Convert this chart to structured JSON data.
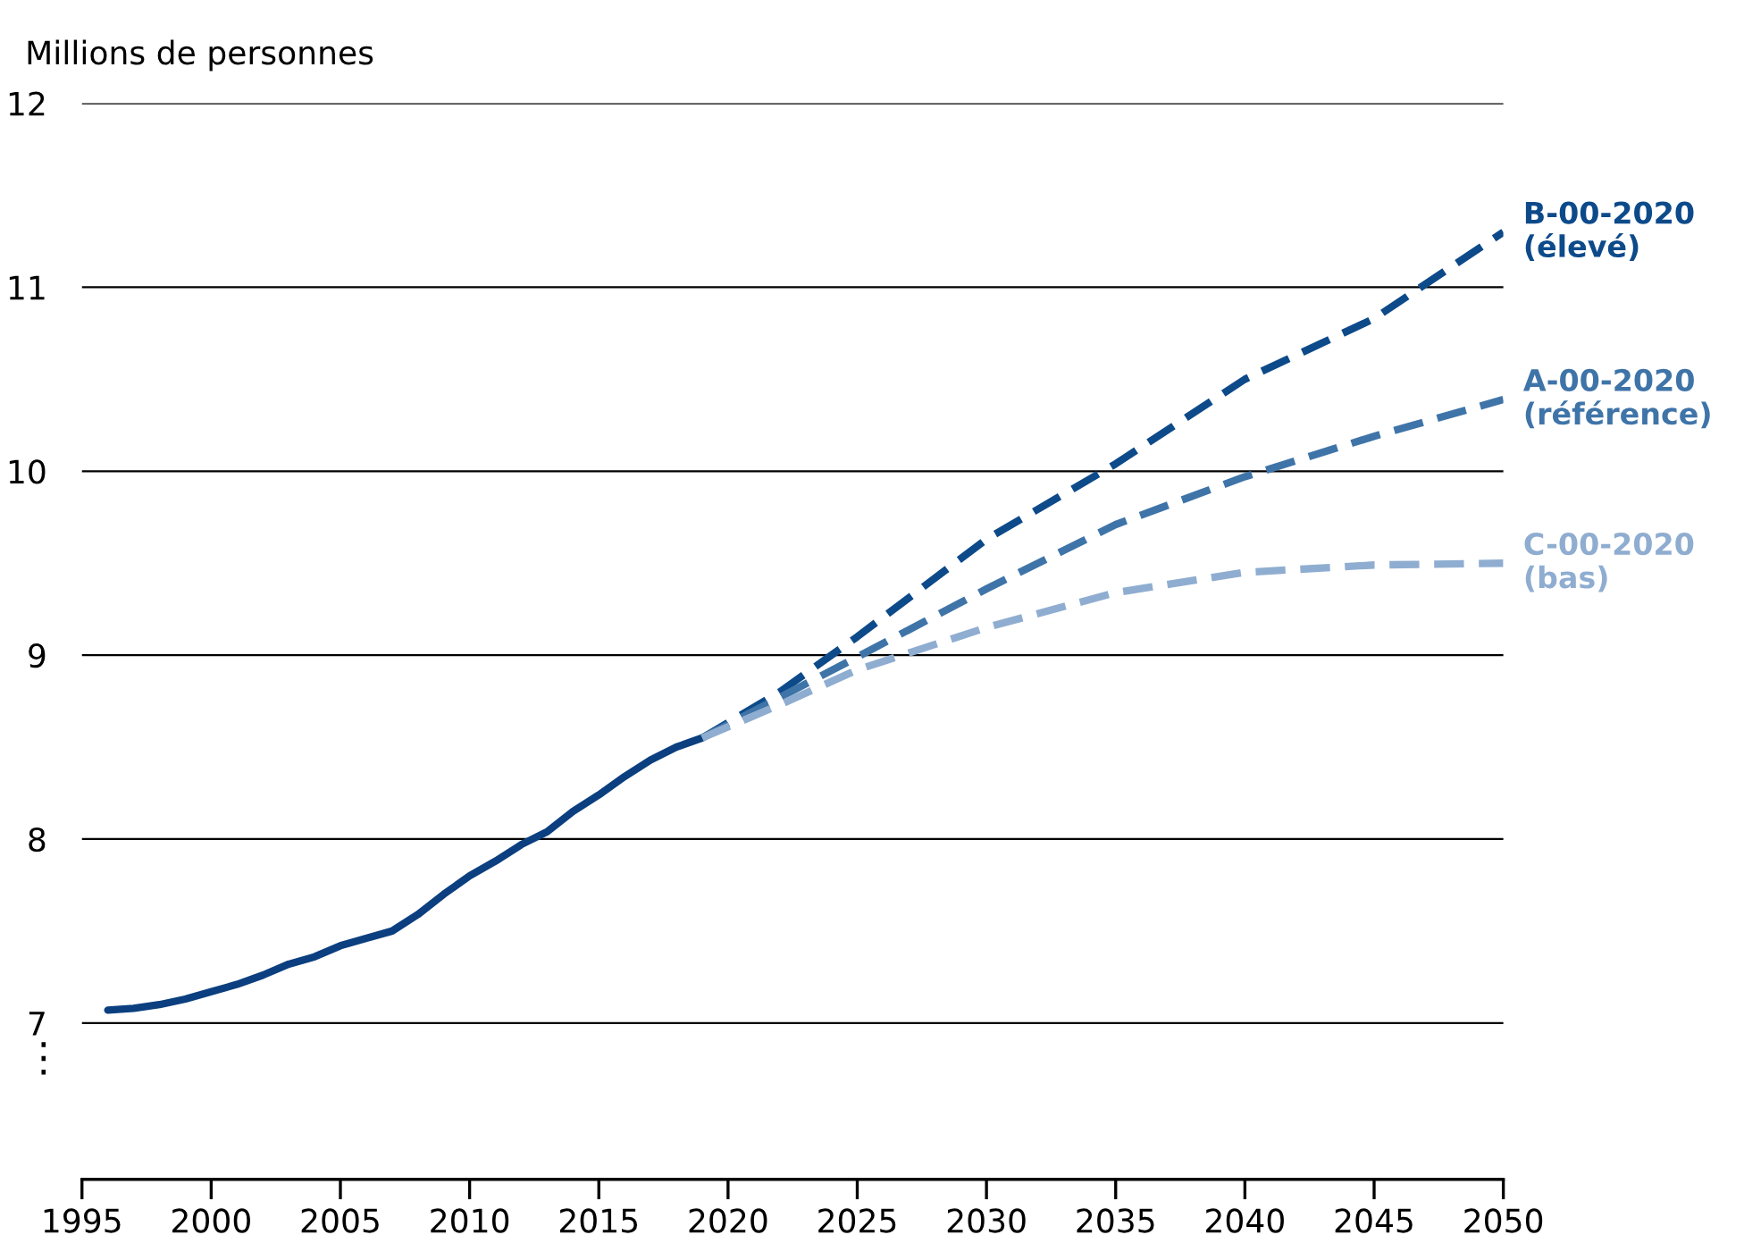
{
  "chart_data": {
    "type": "line",
    "ylabel": "Millions de personnes",
    "xlim": [
      1995,
      2050
    ],
    "xticks": [
      1995,
      2000,
      2005,
      2010,
      2015,
      2020,
      2025,
      2030,
      2035,
      2040,
      2045,
      2050
    ],
    "ylim": [
      6.15,
      12
    ],
    "yticks": [
      7,
      8,
      9,
      10,
      11,
      12
    ],
    "grid": "y",
    "legend": false,
    "annotations": [
      "⋮"
    ],
    "series": [
      {
        "color": "#0b3f7f",
        "line_style": "solid",
        "x": [
          1996,
          1997,
          1998,
          1999,
          2000,
          2001,
          2002,
          2003,
          2004,
          2005,
          2006,
          2007,
          2008,
          2009,
          2010,
          2011,
          2012,
          2013,
          2014,
          2015,
          2016,
          2017,
          2018,
          2019
        ],
        "values": [
          7.07,
          7.08,
          7.1,
          7.13,
          7.17,
          7.21,
          7.26,
          7.32,
          7.36,
          7.42,
          7.46,
          7.5,
          7.59,
          7.7,
          7.8,
          7.88,
          7.97,
          8.04,
          8.15,
          8.24,
          8.34,
          8.43,
          8.5,
          8.55
        ]
      },
      {
        "name": "B-00-2020\n(élevé)",
        "color": "#0d4a8a",
        "line_style": "dashed",
        "x": [
          2019,
          2022,
          2025,
          2030,
          2035,
          2040,
          2045,
          2050
        ],
        "values": [
          8.55,
          8.8,
          9.1,
          9.63,
          10.04,
          10.5,
          10.83,
          11.3
        ]
      },
      {
        "name": "A-00-2020\n(référence)",
        "color": "#3f74a8",
        "line_style": "dashed",
        "x": [
          2019,
          2022,
          2025,
          2030,
          2035,
          2040,
          2045,
          2050
        ],
        "values": [
          8.55,
          8.77,
          8.99,
          9.36,
          9.71,
          9.97,
          10.19,
          10.39
        ]
      },
      {
        "name": "C-00-2020\n(bas)",
        "color": "#8fadd0",
        "line_style": "dashed",
        "x": [
          2019,
          2022,
          2025,
          2030,
          2035,
          2040,
          2045,
          2050
        ],
        "values": [
          8.55,
          8.73,
          8.92,
          9.15,
          9.34,
          9.45,
          9.49,
          9.5
        ]
      }
    ]
  }
}
